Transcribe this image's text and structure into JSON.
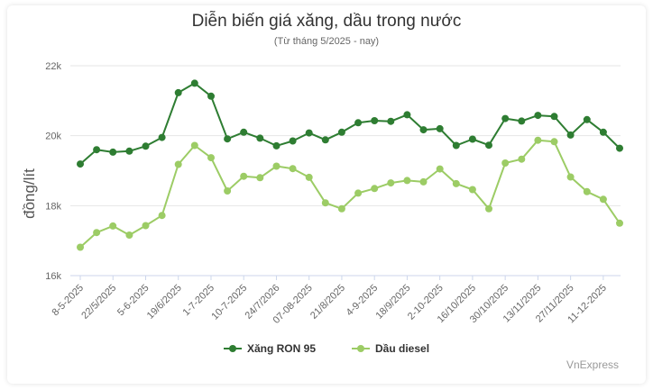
{
  "chart_data": {
    "type": "line",
    "title": "Diễn biến giá xăng, dầu trong nước",
    "subtitle": "(Từ tháng 5/2025 - nay)",
    "ylabel": "đồng/lít",
    "xlabel": "",
    "ylim": [
      16000,
      22000
    ],
    "yticks": [
      16000,
      18000,
      20000,
      22000
    ],
    "ytick_labels": [
      "16k",
      "18k",
      "20k",
      "22k"
    ],
    "x_tick_labels": [
      "8-5-2025",
      "22/5/2025",
      "5-6-2025",
      "19/6/2025",
      "1-7-2025",
      "10-7-2025",
      "24/7/2026",
      "07-08-2025",
      "21/8/2025",
      "4-9-2025",
      "18/9/2025",
      "2-10-2025",
      "16/10/2025",
      "30/10/2025",
      "13/11/2025",
      "27/11/2025",
      "11-12-2025"
    ],
    "grid": "horizontal",
    "legend_position": "bottom",
    "series": [
      {
        "name": "Xăng RON 95",
        "color": "#2e7d32",
        "values": [
          19190,
          19600,
          19530,
          19560,
          19700,
          19950,
          21230,
          21500,
          21130,
          19910,
          20100,
          19930,
          19710,
          19850,
          20080,
          19880,
          20100,
          20370,
          20430,
          20410,
          20600,
          20170,
          20200,
          19720,
          19900,
          19730,
          20490,
          20420,
          20580,
          20550,
          20020,
          20460,
          20100,
          19640
        ]
      },
      {
        "name": "Dầu diesel",
        "color": "#9ccc65",
        "values": [
          16810,
          17230,
          17420,
          17160,
          17430,
          17720,
          19180,
          19720,
          19370,
          18420,
          18840,
          18800,
          19130,
          19060,
          18810,
          18080,
          17910,
          18360,
          18490,
          18650,
          18720,
          18680,
          19050,
          18630,
          18460,
          17910,
          19220,
          19330,
          19870,
          19830,
          18820,
          18400,
          18180,
          17500
        ]
      }
    ]
  },
  "credit": "VnExpress"
}
